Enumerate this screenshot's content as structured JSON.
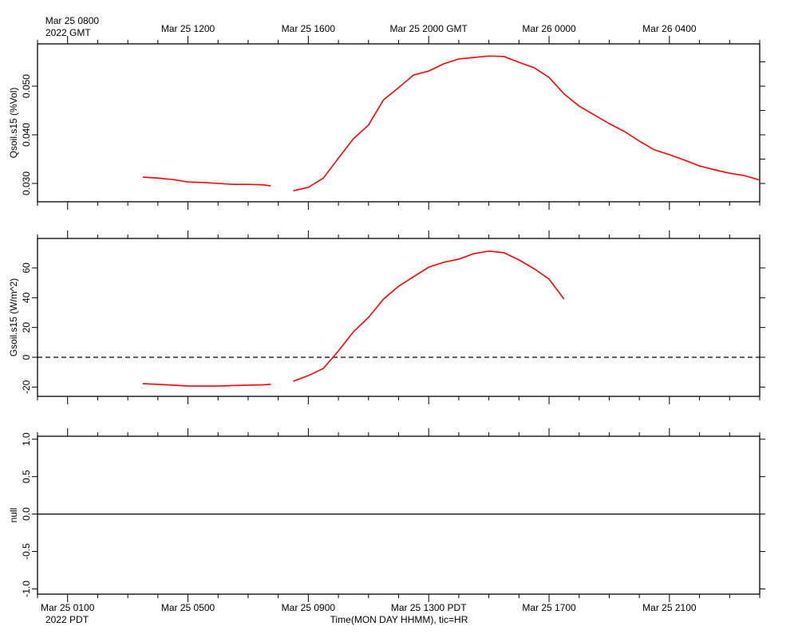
{
  "time_axis": {
    "xlim": [
      "2022-03-25T00:00",
      "2022-03-26T00:00"
    ],
    "xticks": [
      {
        "value": "2022-03-25T01:00",
        "label": "Mar 25 0100"
      },
      {
        "value": "2022-03-25T05:00",
        "label": "Mar 25 0500"
      },
      {
        "value": "2022-03-25T09:00",
        "label": "Mar 25 0900"
      },
      {
        "value": "2022-03-25T13:00",
        "label": "Mar 25 1300 PDT"
      },
      {
        "value": "2022-03-25T17:00",
        "label": "Mar 25 1700"
      },
      {
        "value": "2022-03-25T21:00",
        "label": "Mar 25 2100"
      }
    ],
    "xticks_top": [
      {
        "value": "2022-03-25T01:00",
        "label": "Mar 25 0800"
      },
      {
        "value": "2022-03-25T05:00",
        "label": "Mar 25 1200"
      },
      {
        "value": "2022-03-25T09:00",
        "label": "Mar 25 1600"
      },
      {
        "value": "2022-03-25T13:00",
        "label": "Mar 25 2000 GMT"
      },
      {
        "value": "2022-03-25T17:00",
        "label": "Mar 26 0000"
      },
      {
        "value": "2022-03-25T21:00",
        "label": "Mar 26 0400"
      }
    ],
    "xticks_minor": [
      "2022-03-25T00:00",
      "2022-03-25T02:00",
      "2022-03-25T03:00",
      "2022-03-25T04:00",
      "2022-03-25T06:00",
      "2022-03-25T07:00",
      "2022-03-25T08:00",
      "2022-03-25T10:00",
      "2022-03-25T11:00",
      "2022-03-25T12:00",
      "2022-03-25T14:00",
      "2022-03-25T15:00",
      "2022-03-25T16:00",
      "2022-03-25T18:00",
      "2022-03-25T19:00",
      "2022-03-25T20:00",
      "2022-03-25T22:00",
      "2022-03-25T23:00",
      "2022-03-26T00:00"
    ],
    "year_top": "2022 GMT",
    "year_bottom": "2022 PDT",
    "xlabel": "Time(MON DAY HHMM), tic=HR"
  },
  "chart_data": [
    {
      "type": "line",
      "ylabel": "Qsoil.s15 (%Vol)",
      "x": [
        "2022-03-25T03:30",
        "2022-03-25T04:00",
        "2022-03-25T04:30",
        "2022-03-25T05:00",
        "2022-03-25T05:30",
        "2022-03-25T06:00",
        "2022-03-25T06:30",
        "2022-03-25T07:00",
        "2022-03-25T07:30",
        "2022-03-25T07:45",
        "2022-03-25T08:00",
        "2022-03-25T08:30",
        "2022-03-25T09:00",
        "2022-03-25T09:30",
        "2022-03-25T10:00",
        "2022-03-25T10:30",
        "2022-03-25T11:00",
        "2022-03-25T11:30",
        "2022-03-25T12:00",
        "2022-03-25T12:30",
        "2022-03-25T13:00",
        "2022-03-25T13:30",
        "2022-03-25T14:00",
        "2022-03-25T14:30",
        "2022-03-25T15:00",
        "2022-03-25T15:30",
        "2022-03-25T16:00",
        "2022-03-25T16:30",
        "2022-03-25T17:00",
        "2022-03-25T17:30",
        "2022-03-25T18:00",
        "2022-03-25T18:30",
        "2022-03-25T19:00",
        "2022-03-25T19:30",
        "2022-03-25T20:00",
        "2022-03-25T20:30",
        "2022-03-25T21:00",
        "2022-03-25T21:30",
        "2022-03-25T22:00",
        "2022-03-25T22:30",
        "2022-03-25T23:00",
        "2022-03-25T23:30",
        "2022-03-26T00:00"
      ],
      "series": [
        {
          "color": "#ff0000",
          "values": [
            0.0313,
            0.0311,
            0.0308,
            0.0303,
            0.0302,
            0.03,
            0.0298,
            0.0298,
            0.0297,
            0.0295,
            null,
            0.0285,
            0.0292,
            0.0311,
            0.0352,
            0.0392,
            0.042,
            0.0472,
            0.0497,
            0.0523,
            0.0531,
            0.0546,
            0.0556,
            0.0559,
            0.0562,
            0.0561,
            0.0549,
            0.0538,
            0.0518,
            0.0484,
            0.0459,
            0.0441,
            0.0423,
            0.0407,
            0.0387,
            0.0369,
            0.0359,
            0.0348,
            0.0336,
            0.0328,
            0.0321,
            0.0316,
            0.0307
          ]
        }
      ],
      "ylim": [
        0.02623,
        0.0587
      ],
      "yticks": [
        {
          "value": 0.03,
          "label": "0.030"
        },
        {
          "value": 0.04,
          "label": "0.040"
        },
        {
          "value": 0.05,
          "label": "0.050"
        }
      ],
      "yticks_minor": [
        0.035,
        0.045,
        0.055
      ]
    },
    {
      "type": "line",
      "ylabel": "Gsoil.s15 (W/m^2)",
      "x": [
        "2022-03-25T03:30",
        "2022-03-25T04:00",
        "2022-03-25T04:30",
        "2022-03-25T05:00",
        "2022-03-25T05:30",
        "2022-03-25T06:00",
        "2022-03-25T06:30",
        "2022-03-25T07:00",
        "2022-03-25T07:30",
        "2022-03-25T07:45",
        "2022-03-25T08:00",
        "2022-03-25T08:30",
        "2022-03-25T09:00",
        "2022-03-25T09:30",
        "2022-03-25T10:00",
        "2022-03-25T10:30",
        "2022-03-25T11:00",
        "2022-03-25T11:30",
        "2022-03-25T12:00",
        "2022-03-25T12:30",
        "2022-03-25T13:00",
        "2022-03-25T13:30",
        "2022-03-25T14:00",
        "2022-03-25T14:30",
        "2022-03-25T15:00",
        "2022-03-25T15:30",
        "2022-03-25T16:00",
        "2022-03-25T16:30",
        "2022-03-25T17:00",
        "2022-03-25T17:30"
      ],
      "series": [
        {
          "color": "#ff0000",
          "values": [
            -17.7,
            -18.2,
            -18.7,
            -19.3,
            -19.3,
            -19.3,
            -19.0,
            -18.7,
            -18.5,
            -18.2,
            null,
            -16.1,
            -12.3,
            -7.5,
            4.3,
            17.1,
            26.8,
            39.1,
            47.7,
            54.1,
            60.5,
            63.8,
            65.9,
            69.6,
            71.3,
            70.2,
            65.4,
            59.5,
            52.5,
            39.0
          ]
        }
      ],
      "ylim": [
        -26.25,
        79.8
      ],
      "yticks": [
        -20,
        0,
        20,
        40,
        60
      ],
      "zero_line": "dashed"
    },
    {
      "type": "line",
      "ylabel": "null",
      "x": [],
      "series": [],
      "ylim": [
        -1.07,
        1.04
      ],
      "yticks": [
        {
          "value": -1,
          "label": "-1.0"
        },
        {
          "value": -0.5,
          "label": "-0.5"
        },
        {
          "value": 0,
          "label": "0.0"
        },
        {
          "value": 0.5,
          "label": "0.5"
        },
        {
          "value": 1,
          "label": "1.0"
        }
      ],
      "zero_line": "solid"
    }
  ]
}
